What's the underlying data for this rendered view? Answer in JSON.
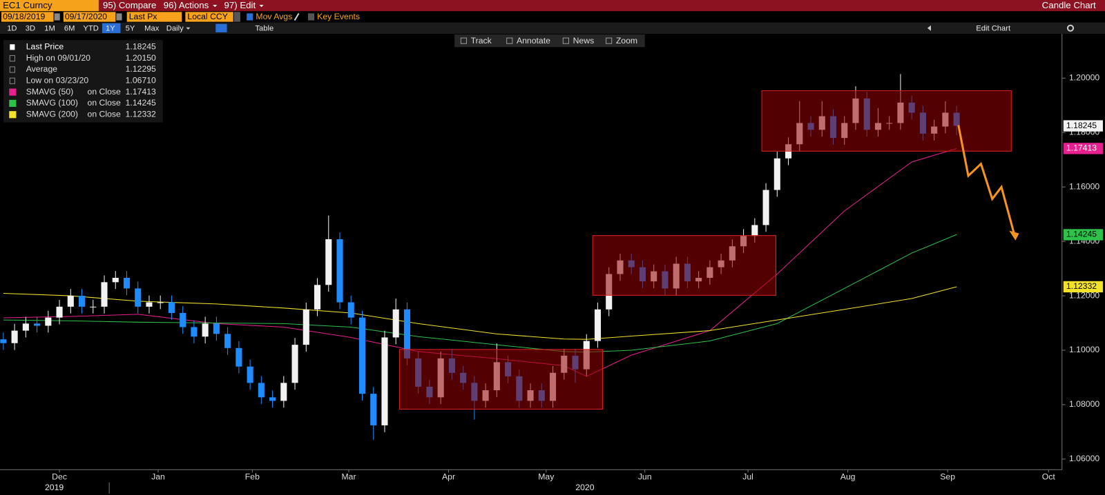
{
  "header": {
    "ticker": "EC1 Curncy",
    "compare": "95) Compare",
    "actions": "96) Actions",
    "edit": "97) Edit",
    "view": "Candle Chart"
  },
  "controls": {
    "start_date": "09/18/2019",
    "end_date": "09/17/2020",
    "field": "Last Px",
    "currency": "Local CCY",
    "mov_avgs": "Mov Avgs",
    "key_events": "Key Events",
    "periods": [
      "1D",
      "3D",
      "1M",
      "6M",
      "YTD",
      "1Y",
      "5Y",
      "Max"
    ],
    "selected": "1Y",
    "frequency": "Daily",
    "table": "Table",
    "edit_chart": "Edit Chart",
    "tools": [
      "Track",
      "Annotate",
      "News",
      "Zoom"
    ]
  },
  "chart_data": {
    "type": "candlestick",
    "up_color": "#f2f2f2",
    "down_color": "#1e8cff",
    "open": [
      1.104,
      1.1026,
      1.1072,
      1.1098,
      1.109,
      1.112,
      1.116,
      1.12,
      1.116,
      1.116,
      1.125,
      1.1266,
      1.1227,
      1.116,
      1.1176,
      1.1176,
      1.1137,
      1.1085,
      1.105,
      1.1098,
      1.106,
      1.1008,
      1.094,
      1.088,
      1.0827,
      1.0814,
      1.088,
      1.102,
      1.115,
      1.124,
      1.1408,
      1.1176,
      1.112,
      1.084,
      1.0724,
      1.1047,
      1.115,
      1.097,
      1.0866,
      1.0827,
      1.097,
      1.0917,
      1.088,
      1.0814,
      1.0853,
      1.0956,
      1.0904,
      1.0814,
      1.0853,
      1.0814,
      1.0917,
      1.098,
      1.093,
      1.1034,
      1.115,
      1.128,
      1.133,
      1.1305,
      1.1253,
      1.129,
      1.1227,
      1.1318,
      1.1253,
      1.1266,
      1.1305,
      1.133,
      1.1382,
      1.142,
      1.146,
      1.1589,
      1.1705,
      1.1757,
      1.1835,
      1.181,
      1.186,
      1.178,
      1.1835,
      1.1925,
      1.181,
      1.1835,
      1.1835,
      1.191,
      1.1873,
      1.1796,
      1.1822,
      1.1873
    ],
    "high": [
      1.1065,
      1.1097,
      1.1123,
      1.1123,
      1.1145,
      1.1185,
      1.1225,
      1.1225,
      1.1185,
      1.1275,
      1.1291,
      1.1291,
      1.1252,
      1.1201,
      1.1201,
      1.1201,
      1.1162,
      1.111,
      1.1123,
      1.1123,
      1.1085,
      1.1033,
      1.0965,
      1.0905,
      1.0852,
      1.0905,
      1.1045,
      1.1175,
      1.1265,
      1.1495,
      1.1433,
      1.1201,
      1.1145,
      1.0865,
      1.1072,
      1.119,
      1.1175,
      1.0995,
      1.0891,
      1.0995,
      1.1005,
      1.0942,
      1.0905,
      1.0878,
      1.1025,
      1.0981,
      1.0929,
      1.0878,
      1.0878,
      1.0942,
      1.1005,
      1.1005,
      1.1059,
      1.1175,
      1.1305,
      1.1355,
      1.1355,
      1.133,
      1.1315,
      1.1315,
      1.1343,
      1.1343,
      1.1291,
      1.133,
      1.1355,
      1.1407,
      1.1445,
      1.1485,
      1.1614,
      1.173,
      1.1782,
      1.1915,
      1.186,
      1.1915,
      1.1885,
      1.186,
      1.197,
      1.195,
      1.189,
      1.186,
      1.2015,
      1.1935,
      1.1898,
      1.1847,
      1.1915,
      1.1898
    ],
    "low": [
      1.1001,
      1.1001,
      1.1047,
      1.1065,
      1.1065,
      1.1095,
      1.1135,
      1.1135,
      1.1135,
      1.1135,
      1.1225,
      1.1202,
      1.1135,
      1.1135,
      1.1151,
      1.1112,
      1.106,
      1.1025,
      1.1025,
      1.1035,
      1.0983,
      1.0915,
      1.0855,
      1.0802,
      1.0789,
      1.0789,
      1.0855,
      1.0995,
      1.1125,
      1.1215,
      1.1151,
      1.1095,
      1.0815,
      1.0671,
      1.0699,
      1.1022,
      1.0945,
      1.0841,
      1.0802,
      1.0802,
      1.0892,
      1.0855,
      1.0745,
      1.0789,
      1.0828,
      1.0879,
      1.0789,
      1.0789,
      1.0789,
      1.0789,
      1.0892,
      1.088,
      1.0905,
      1.1009,
      1.1125,
      1.1255,
      1.128,
      1.1228,
      1.1228,
      1.1202,
      1.1202,
      1.1228,
      1.1228,
      1.1241,
      1.128,
      1.1305,
      1.1357,
      1.1395,
      1.1435,
      1.1564,
      1.168,
      1.1732,
      1.1785,
      1.1785,
      1.1755,
      1.1755,
      1.181,
      1.1785,
      1.1785,
      1.181,
      1.181,
      1.1848,
      1.1771,
      1.1771,
      1.1797,
      1.179
    ],
    "close": [
      1.1026,
      1.1072,
      1.1098,
      1.109,
      1.112,
      1.116,
      1.12,
      1.116,
      1.116,
      1.125,
      1.1266,
      1.1227,
      1.116,
      1.1176,
      1.1176,
      1.1137,
      1.1085,
      1.105,
      1.1098,
      1.106,
      1.1008,
      1.094,
      1.088,
      1.0827,
      1.0814,
      1.088,
      1.102,
      1.115,
      1.124,
      1.1408,
      1.1176,
      1.112,
      1.084,
      1.0724,
      1.1047,
      1.115,
      1.097,
      1.0866,
      1.0827,
      1.097,
      1.0917,
      1.088,
      1.0814,
      1.0853,
      1.0956,
      1.0904,
      1.0814,
      1.0853,
      1.0814,
      1.0917,
      1.098,
      1.093,
      1.1034,
      1.115,
      1.128,
      1.133,
      1.1305,
      1.1253,
      1.129,
      1.1227,
      1.1318,
      1.1253,
      1.1266,
      1.1305,
      1.133,
      1.1382,
      1.142,
      1.146,
      1.1589,
      1.1705,
      1.1757,
      1.1835,
      1.181,
      1.186,
      1.178,
      1.1835,
      1.1925,
      1.181,
      1.1835,
      1.1835,
      1.191,
      1.1873,
      1.1796,
      1.1822,
      1.1873,
      1.18245
    ],
    "moving_averages": {
      "x": [
        0,
        6,
        12,
        19,
        25,
        31,
        37,
        44,
        50,
        52,
        56,
        63,
        69,
        75,
        81,
        85
      ],
      "series": [
        {
          "name": "SMAVG (50)",
          "basis": "on Close",
          "color": "#e8208f",
          "last": 1.17413,
          "values": [
            1.1119,
            1.1124,
            1.1132,
            1.1098,
            1.1085,
            1.1047,
            1.0995,
            1.0969,
            1.0943,
            1.0904,
            1.0982,
            1.1072,
            1.128,
            1.1512,
            1.1692,
            1.1741
          ]
        },
        {
          "name": "SMAVG (100)",
          "basis": "on Close",
          "color": "#2ec24a",
          "last": 1.14245,
          "values": [
            1.1111,
            1.1108,
            1.1103,
            1.11,
            1.1098,
            1.1085,
            1.105,
            1.102,
            1.0995,
            1.0993,
            1.1,
            1.1034,
            1.1098,
            1.1227,
            1.1357,
            1.1425
          ]
        },
        {
          "name": "SMAVG (200)",
          "basis": "on Close",
          "color": "#f2e22a",
          "last": 1.12332,
          "values": [
            1.1209,
            1.12,
            1.118,
            1.117,
            1.1155,
            1.1137,
            1.1098,
            1.106,
            1.1041,
            1.104,
            1.1052,
            1.1072,
            1.1111,
            1.115,
            1.119,
            1.1233
          ]
        }
      ]
    },
    "legend": [
      {
        "label": "Last Price",
        "value": 1.18245
      },
      {
        "label": "High on 09/01/20",
        "value": 1.2015,
        "value_label": "1.20150"
      },
      {
        "label": "Average",
        "value": 1.12295
      },
      {
        "label": "Low on 03/23/20",
        "value": 1.0671,
        "value_label": "1.06710"
      }
    ],
    "xlim": [
      -0.3,
      94.4
    ],
    "xticks": [
      {
        "value": 5,
        "label": "Dec"
      },
      {
        "value": 13.8,
        "label": "Jan"
      },
      {
        "value": 22.2,
        "label": "Feb"
      },
      {
        "value": 30.8,
        "label": "Mar"
      },
      {
        "value": 39.7,
        "label": "Apr"
      },
      {
        "value": 48.4,
        "label": "May"
      },
      {
        "value": 57.2,
        "label": "Jun"
      },
      {
        "value": 66.4,
        "label": "Jul"
      },
      {
        "value": 75.3,
        "label": "Aug"
      },
      {
        "value": 84.2,
        "label": "Sep"
      },
      {
        "value": 93.2,
        "label": "Oct"
      }
    ],
    "years": [
      "2019",
      "2020"
    ],
    "ylim": [
      1.0561,
      1.2163
    ],
    "yticks": [
      {
        "value": 1.06,
        "label": "1.06000"
      },
      {
        "value": 1.08,
        "label": "1.08000"
      },
      {
        "value": 1.1,
        "label": "1.10000"
      },
      {
        "value": 1.12,
        "label": "1.12000"
      },
      {
        "value": 1.14,
        "label": "1.14000"
      },
      {
        "value": 1.16,
        "label": "1.16000"
      },
      {
        "value": 1.18,
        "label": "1.18000"
      },
      {
        "value": 1.2,
        "label": "1.20000"
      }
    ]
  }
}
